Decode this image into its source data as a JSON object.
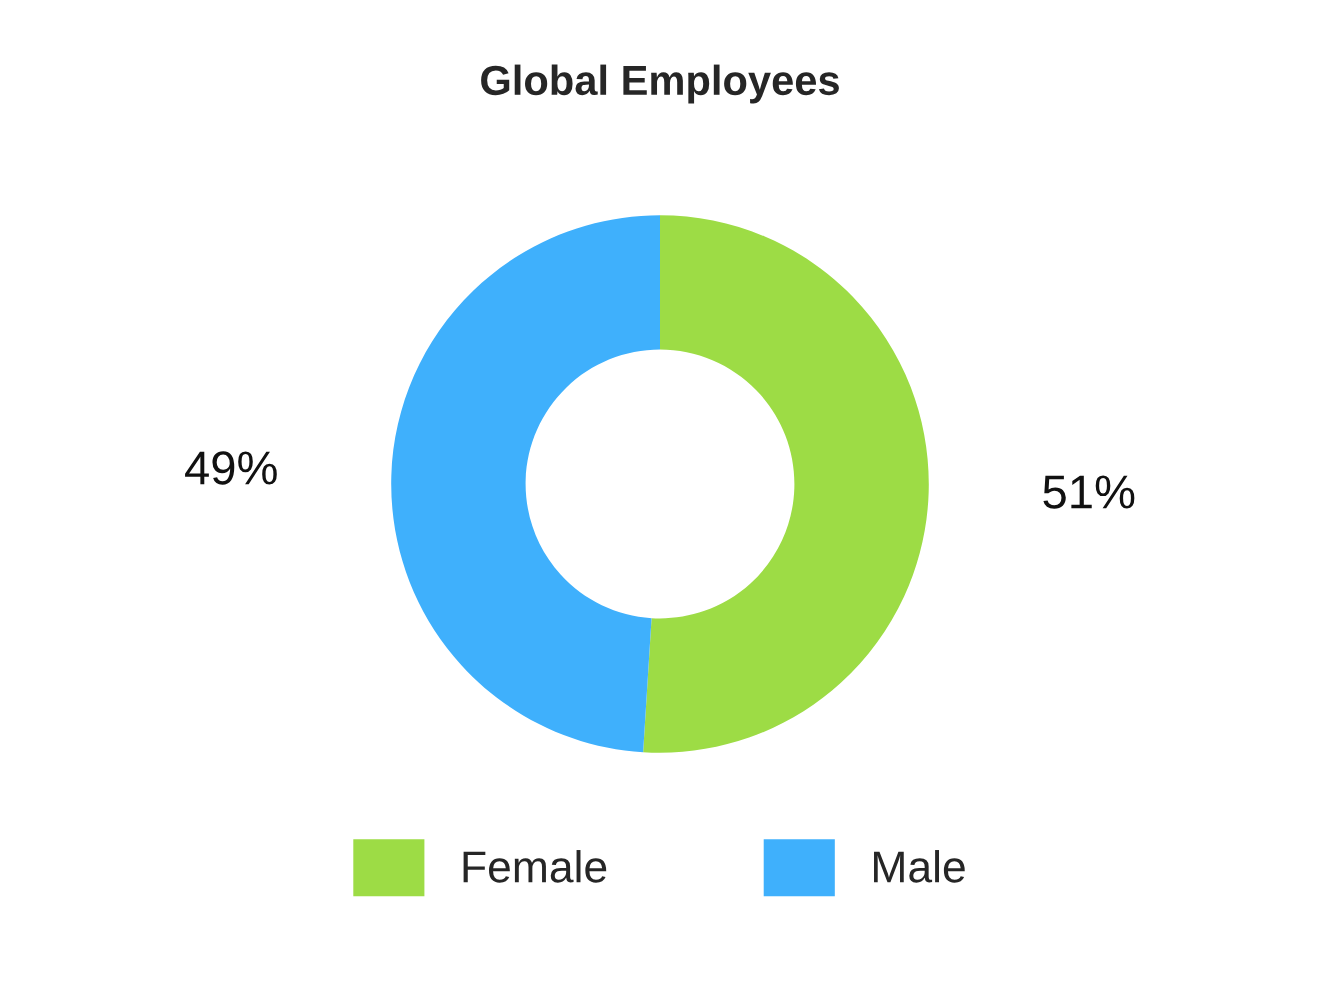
{
  "chart_data": {
    "type": "donut",
    "title": "Global Employees",
    "categories": [
      "Female",
      "Male"
    ],
    "values": [
      51,
      49
    ],
    "colors": [
      "#9ddc45",
      "#3fb0fc"
    ],
    "value_labels": [
      "51%",
      "49%"
    ],
    "legend": "bottom"
  }
}
